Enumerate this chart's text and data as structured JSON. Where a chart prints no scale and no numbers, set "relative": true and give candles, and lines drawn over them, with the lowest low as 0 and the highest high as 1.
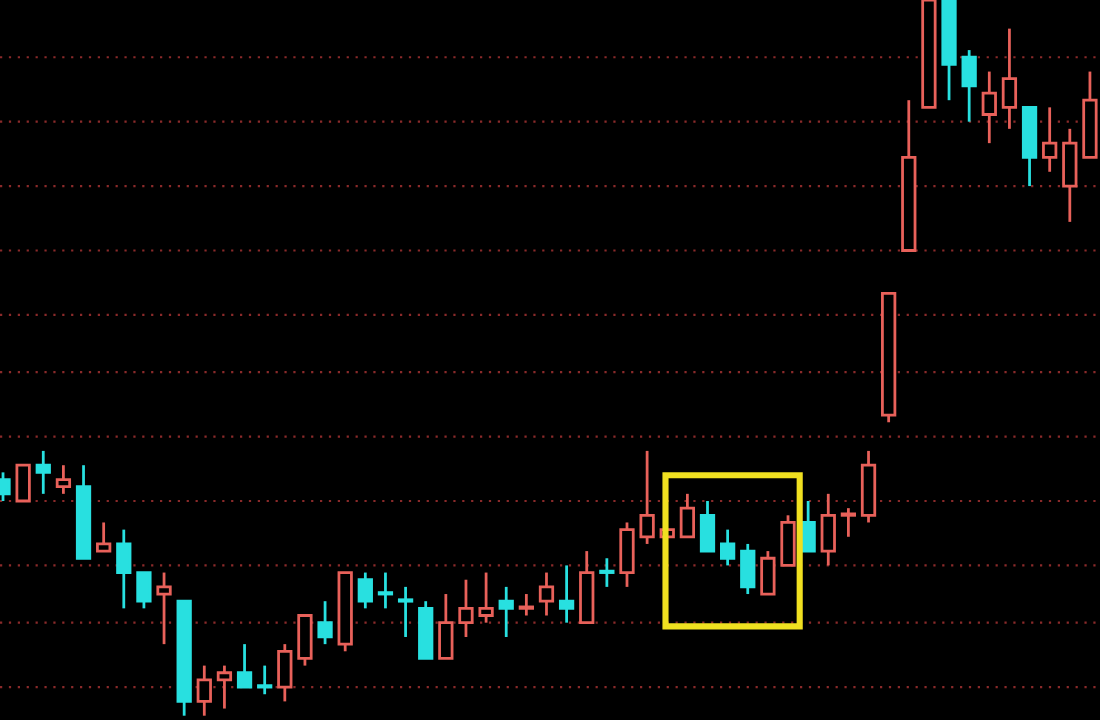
{
  "chart_data": {
    "type": "candlestick",
    "relative": true,
    "ref_lines": [
      {
        "axis": "y",
        "value": 0.92,
        "color": "#8a2a2a",
        "line_style": "dotted"
      },
      {
        "axis": "y",
        "value": 0.83,
        "color": "#8a2a2a",
        "line_style": "dotted"
      },
      {
        "axis": "y",
        "value": 0.74,
        "color": "#8a2a2a",
        "line_style": "dotted"
      },
      {
        "axis": "y",
        "value": 0.65,
        "color": "#8a2a2a",
        "line_style": "dotted"
      },
      {
        "axis": "y",
        "value": 0.56,
        "color": "#8a2a2a",
        "line_style": "dotted"
      },
      {
        "axis": "y",
        "value": 0.48,
        "color": "#8a2a2a",
        "line_style": "dotted"
      },
      {
        "axis": "y",
        "value": 0.39,
        "color": "#8a2a2a",
        "line_style": "dotted"
      },
      {
        "axis": "y",
        "value": 0.3,
        "color": "#8a2a2a",
        "line_style": "dotted"
      },
      {
        "axis": "y",
        "value": 0.21,
        "color": "#8a2a2a",
        "line_style": "dotted"
      },
      {
        "axis": "y",
        "value": 0.13,
        "color": "#8a2a2a",
        "line_style": "dotted"
      },
      {
        "axis": "y",
        "value": 0.04,
        "color": "#8a2a2a",
        "line_style": "dotted"
      }
    ],
    "categories": [
      null,
      null,
      null,
      null,
      null,
      null,
      null,
      null,
      null,
      null,
      null,
      null,
      null,
      null,
      null,
      null,
      null,
      null,
      null,
      null,
      null,
      null,
      null,
      null,
      null,
      null,
      null,
      null,
      null,
      null,
      null,
      null,
      null,
      null,
      null,
      null,
      null,
      null,
      null,
      null,
      null,
      null,
      null,
      null,
      null,
      null,
      null,
      null,
      null,
      null,
      null,
      null,
      null,
      null,
      null
    ],
    "ohlc": [
      [
        0.33,
        0.34,
        0.3,
        0.31
      ],
      [
        0.3,
        0.35,
        0.3,
        0.35
      ],
      [
        0.35,
        0.37,
        0.31,
        0.34
      ],
      [
        0.32,
        0.35,
        0.31,
        0.33
      ],
      [
        0.32,
        0.35,
        0.22,
        0.22
      ],
      [
        0.23,
        0.27,
        0.23,
        0.24
      ],
      [
        0.24,
        0.26,
        0.15,
        0.2
      ],
      [
        0.2,
        0.2,
        0.15,
        0.16
      ],
      [
        0.17,
        0.2,
        0.1,
        0.18
      ],
      [
        0.16,
        0.16,
        0.0,
        0.02
      ],
      [
        0.02,
        0.07,
        0.0,
        0.05
      ],
      [
        0.05,
        0.07,
        0.01,
        0.06
      ],
      [
        0.06,
        0.1,
        0.04,
        0.04
      ],
      [
        0.04,
        0.07,
        0.03,
        0.04
      ],
      [
        0.04,
        0.1,
        0.02,
        0.09
      ],
      [
        0.08,
        0.14,
        0.07,
        0.14
      ],
      [
        0.13,
        0.16,
        0.1,
        0.11
      ],
      [
        0.1,
        0.2,
        0.09,
        0.2
      ],
      [
        0.19,
        0.2,
        0.15,
        0.16
      ],
      [
        0.17,
        0.2,
        0.15,
        0.17
      ],
      [
        0.16,
        0.18,
        0.11,
        0.16
      ],
      [
        0.15,
        0.16,
        0.08,
        0.08
      ],
      [
        0.08,
        0.17,
        0.08,
        0.13
      ],
      [
        0.13,
        0.19,
        0.11,
        0.15
      ],
      [
        0.14,
        0.2,
        0.13,
        0.15
      ],
      [
        0.16,
        0.18,
        0.11,
        0.15
      ],
      [
        0.15,
        0.17,
        0.14,
        0.15
      ],
      [
        0.16,
        0.2,
        0.14,
        0.18
      ],
      [
        0.16,
        0.21,
        0.13,
        0.15
      ],
      [
        0.13,
        0.23,
        0.13,
        0.2
      ],
      [
        0.2,
        0.22,
        0.18,
        0.2
      ],
      [
        0.2,
        0.27,
        0.18,
        0.26
      ],
      [
        0.25,
        0.37,
        0.24,
        0.28
      ],
      [
        0.25,
        0.26,
        0.25,
        0.26
      ],
      [
        0.25,
        0.31,
        0.25,
        0.29
      ],
      [
        0.28,
        0.3,
        0.23,
        0.23
      ],
      [
        0.24,
        0.26,
        0.21,
        0.22
      ],
      [
        0.23,
        0.24,
        0.17,
        0.18
      ],
      [
        0.17,
        0.23,
        0.17,
        0.22
      ],
      [
        0.21,
        0.28,
        0.21,
        0.27
      ],
      [
        0.27,
        0.3,
        0.23,
        0.23
      ],
      [
        0.23,
        0.31,
        0.21,
        0.28
      ],
      [
        0.28,
        0.29,
        0.25,
        0.28
      ],
      [
        0.28,
        0.37,
        0.27,
        0.35
      ],
      [
        0.42,
        0.59,
        0.41,
        0.59
      ],
      [
        0.65,
        0.86,
        0.65,
        0.78
      ],
      [
        0.85,
        1,
        0.85,
        1
      ],
      [
        1,
        1,
        0.86,
        0.91
      ],
      [
        0.92,
        0.93,
        0.83,
        0.88
      ],
      [
        0.84,
        0.9,
        0.8,
        0.87
      ],
      [
        0.85,
        0.96,
        0.82,
        0.89
      ],
      [
        0.85,
        0.85,
        0.74,
        0.78
      ],
      [
        0.78,
        0.85,
        0.76,
        0.8
      ],
      [
        0.74,
        0.82,
        0.69,
        0.8
      ],
      [
        0.78,
        0.9,
        0.78,
        0.86
      ]
    ],
    "colors": [
      "#28e0e0",
      "#e8615a",
      "#28e0e0",
      "#e8615a",
      "#28e0e0",
      "#e8615a",
      "#28e0e0",
      "#28e0e0",
      "#e8615a",
      "#28e0e0",
      "#e8615a",
      "#e8615a",
      "#28e0e0",
      "#28e0e0",
      "#e8615a",
      "#e8615a",
      "#28e0e0",
      "#e8615a",
      "#28e0e0",
      "#28e0e0",
      "#28e0e0",
      "#28e0e0",
      "#e8615a",
      "#e8615a",
      "#e8615a",
      "#28e0e0",
      "#e8615a",
      "#e8615a",
      "#28e0e0",
      "#e8615a",
      "#28e0e0",
      "#e8615a",
      "#e8615a",
      "#e8615a",
      "#e8615a",
      "#28e0e0",
      "#28e0e0",
      "#28e0e0",
      "#e8615a",
      "#e8615a",
      "#28e0e0",
      "#e8615a",
      "#e8615a",
      "#e8615a",
      "#e8615a",
      "#e8615a",
      "#e8615a",
      "#28e0e0",
      "#28e0e0",
      "#e8615a",
      "#e8615a",
      "#28e0e0",
      "#e8615a",
      "#e8615a",
      "#e8615a"
    ]
  }
}
